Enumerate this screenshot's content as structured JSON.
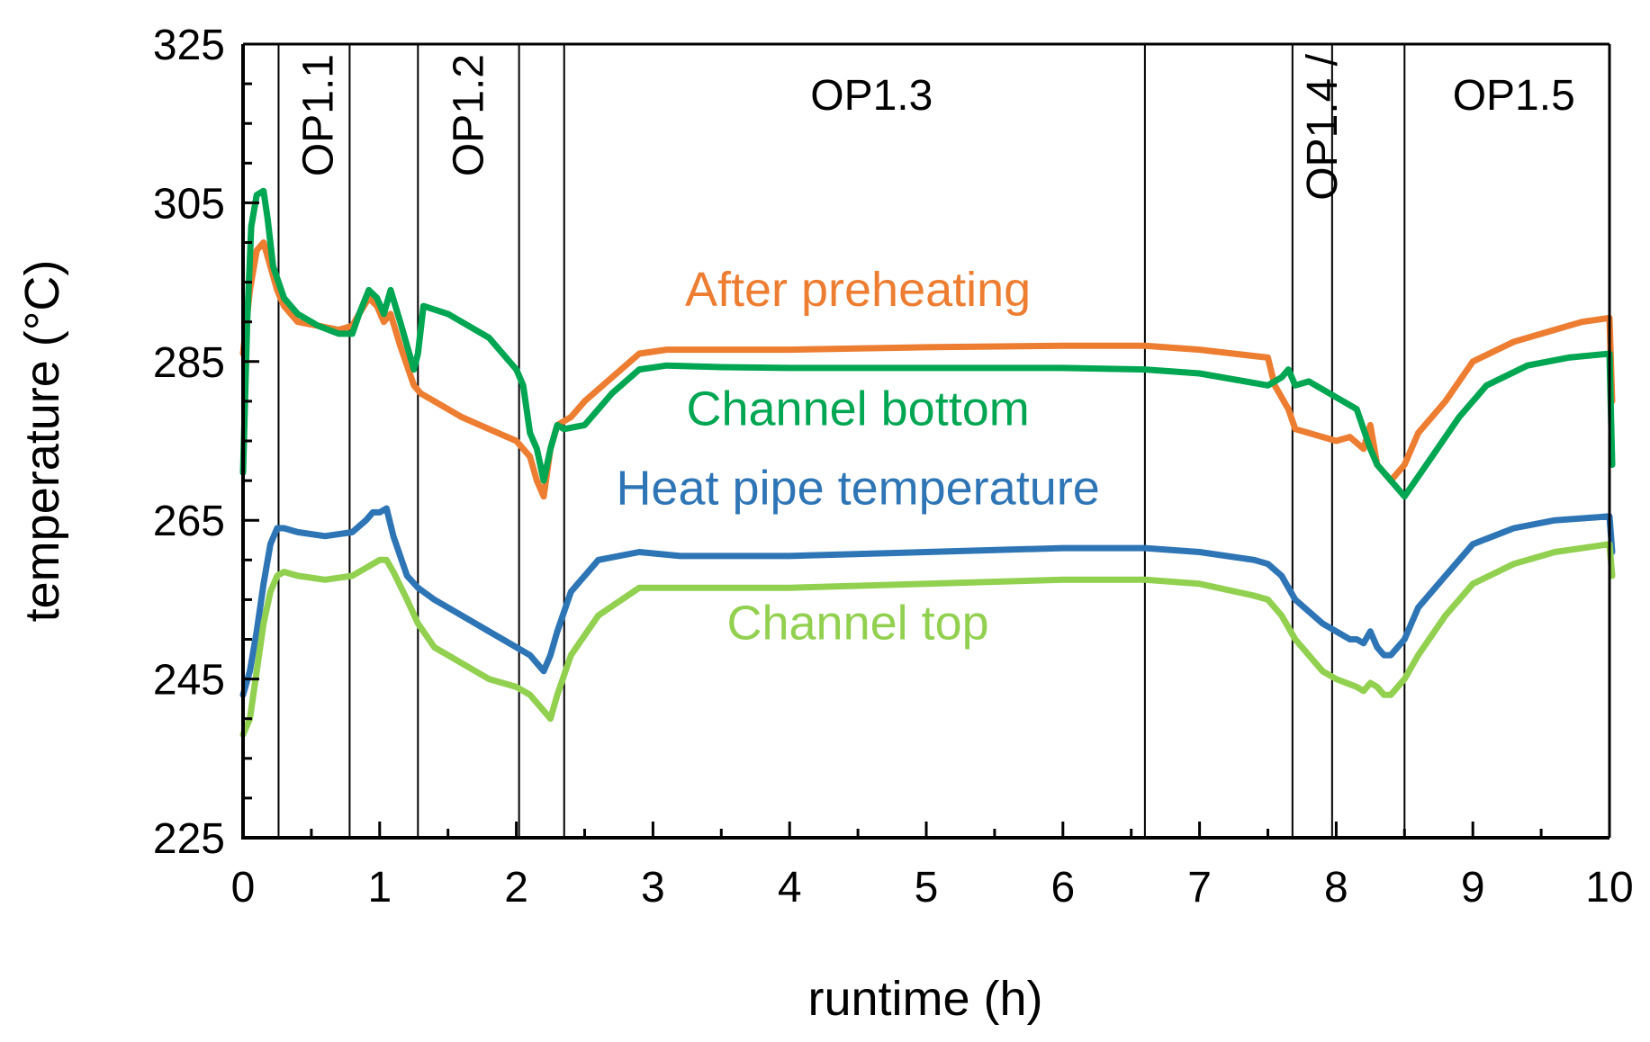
{
  "chart_data": {
    "type": "line",
    "title": "",
    "xlabel": "runtime (h)",
    "ylabel": "temperature (°C)",
    "xlim": [
      0,
      10
    ],
    "ylim": [
      225,
      325
    ],
    "xticks": [
      0,
      1,
      2,
      3,
      4,
      5,
      6,
      7,
      8,
      9,
      10
    ],
    "yticks": [
      225,
      245,
      265,
      285,
      305,
      325
    ],
    "tick_labels_x": [
      "0",
      "1",
      "2",
      "3",
      "4",
      "5",
      "6",
      "7",
      "8",
      "9",
      "10"
    ],
    "tick_labels_y": [
      "225",
      "245",
      "265",
      "285",
      "305",
      "325"
    ],
    "grid": false,
    "phase_boundaries": [
      0.26,
      0.78,
      1.28,
      2.02,
      2.35,
      6.6,
      7.68,
      7.97,
      8.5
    ],
    "phases": [
      {
        "label": "OP1.1",
        "x": 0.55
      },
      {
        "label": "OP1.2",
        "x": 1.65
      },
      {
        "label": "OP1.3",
        "x": 4.6
      },
      {
        "label": "OP1.4 /",
        "x": 7.9
      },
      {
        "label": "OP1.5",
        "x": 9.3
      }
    ],
    "series": [
      {
        "name": "After preheating",
        "color": "#ED7D31",
        "label_at": [
          4.5,
          292
        ],
        "x": [
          0,
          0.05,
          0.1,
          0.15,
          0.2,
          0.25,
          0.3,
          0.4,
          0.55,
          0.7,
          0.8,
          0.85,
          0.92,
          0.98,
          1.03,
          1.08,
          1.15,
          1.25,
          1.3,
          1.4,
          1.6,
          1.8,
          2.0,
          2.1,
          2.15,
          2.2,
          2.25,
          2.3,
          2.4,
          2.5,
          2.7,
          2.9,
          3.1,
          3.5,
          4.0,
          5.0,
          6.0,
          6.6,
          7.0,
          7.5,
          7.55,
          7.65,
          7.7,
          7.8,
          8.0,
          8.1,
          8.2,
          8.25,
          8.3,
          8.4,
          8.5,
          8.6,
          8.8,
          9.0,
          9.3,
          9.6,
          9.8,
          10.0,
          10.02
        ],
        "values": [
          286,
          294,
          299,
          300,
          297,
          294,
          292,
          290,
          289.5,
          289,
          289.5,
          291,
          293,
          292,
          290,
          291,
          287,
          282,
          281,
          280,
          278,
          276.5,
          275,
          273,
          270,
          268,
          274,
          277,
          278,
          280,
          283,
          286,
          286.5,
          286.5,
          286.5,
          286.8,
          287,
          287,
          286.5,
          285.5,
          282,
          279,
          276.5,
          276,
          275,
          275.5,
          274,
          277,
          272,
          270,
          272,
          276,
          280,
          285,
          287.5,
          289,
          290,
          290.5,
          280
        ]
      },
      {
        "name": "Channel bottom",
        "color": "#00A651",
        "label_at": [
          4.5,
          277
        ],
        "x": [
          0,
          0.03,
          0.06,
          0.1,
          0.15,
          0.18,
          0.22,
          0.3,
          0.4,
          0.55,
          0.7,
          0.8,
          0.85,
          0.92,
          0.98,
          1.03,
          1.08,
          1.15,
          1.25,
          1.28,
          1.32,
          1.5,
          1.8,
          2.0,
          2.05,
          2.1,
          2.15,
          2.2,
          2.25,
          2.3,
          2.35,
          2.5,
          2.7,
          2.9,
          3.1,
          3.5,
          4.0,
          5.0,
          6.0,
          6.6,
          7.0,
          7.5,
          7.6,
          7.65,
          7.7,
          7.8,
          8.0,
          8.15,
          8.25,
          8.3,
          8.4,
          8.5,
          8.7,
          8.9,
          9.1,
          9.4,
          9.7,
          10.0,
          10.02
        ],
        "values": [
          271,
          290,
          302,
          306,
          306.5,
          303,
          297,
          293,
          291,
          289.5,
          288.5,
          288.5,
          291,
          294,
          293,
          291,
          294,
          290,
          284,
          286,
          292,
          291,
          288,
          284,
          282,
          276,
          274,
          270,
          274,
          277,
          276.5,
          277,
          281,
          284,
          284.5,
          284.3,
          284.2,
          284.2,
          284.2,
          284,
          283.5,
          282,
          283,
          284,
          282,
          282.5,
          280.5,
          279,
          274,
          272,
          270,
          268,
          273,
          278,
          282,
          284.5,
          285.5,
          286,
          272
        ]
      },
      {
        "name": "Heat pipe temperature",
        "color": "#2E75B6",
        "label_at": [
          4.5,
          267
        ],
        "x": [
          0,
          0.05,
          0.1,
          0.15,
          0.2,
          0.25,
          0.3,
          0.4,
          0.6,
          0.8,
          0.9,
          0.95,
          1.0,
          1.05,
          1.1,
          1.2,
          1.28,
          1.4,
          1.6,
          1.8,
          2.0,
          2.1,
          2.15,
          2.2,
          2.25,
          2.3,
          2.4,
          2.6,
          2.9,
          3.2,
          4.0,
          5.0,
          6.0,
          6.6,
          7.0,
          7.4,
          7.5,
          7.6,
          7.7,
          7.9,
          8.0,
          8.1,
          8.15,
          8.2,
          8.25,
          8.3,
          8.35,
          8.4,
          8.5,
          8.6,
          8.8,
          9.0,
          9.3,
          9.6,
          10.0,
          10.02
        ],
        "values": [
          243,
          246,
          251,
          257,
          262,
          264,
          264,
          263.5,
          263,
          263.5,
          265,
          266,
          266,
          266.5,
          263,
          258,
          256.5,
          255,
          253,
          251,
          249,
          248,
          247,
          246,
          248,
          251,
          256,
          260,
          261,
          260.5,
          260.5,
          261,
          261.5,
          261.5,
          261,
          260,
          259.5,
          258,
          255,
          252,
          251,
          250,
          250,
          249.5,
          251,
          249,
          248,
          248,
          250,
          254,
          258,
          262,
          264,
          265,
          265.5,
          261
        ]
      },
      {
        "name": "Channel top",
        "color": "#92D050",
        "label_at": [
          4.5,
          250
        ],
        "x": [
          0,
          0.05,
          0.1,
          0.15,
          0.2,
          0.25,
          0.3,
          0.4,
          0.6,
          0.8,
          0.9,
          1.0,
          1.05,
          1.1,
          1.2,
          1.28,
          1.4,
          1.6,
          1.8,
          2.0,
          2.1,
          2.2,
          2.25,
          2.3,
          2.4,
          2.6,
          2.9,
          3.2,
          4.0,
          5.0,
          6.0,
          6.6,
          7.0,
          7.4,
          7.5,
          7.6,
          7.7,
          7.9,
          8.0,
          8.15,
          8.2,
          8.25,
          8.3,
          8.35,
          8.4,
          8.5,
          8.6,
          8.8,
          9.0,
          9.3,
          9.6,
          10.0,
          10.02
        ],
        "values": [
          238,
          240,
          246,
          252,
          256,
          258,
          258.5,
          258,
          257.5,
          258,
          259,
          260,
          260,
          258.5,
          255,
          252,
          249,
          247,
          245,
          244,
          243,
          241,
          240,
          243,
          248,
          253,
          256.5,
          256.5,
          256.5,
          257,
          257.5,
          257.5,
          257,
          255.5,
          255,
          253,
          250,
          246,
          245,
          244,
          243.5,
          244.5,
          244,
          243,
          243,
          245,
          248,
          253,
          257,
          259.5,
          261,
          262,
          258
        ]
      }
    ]
  }
}
